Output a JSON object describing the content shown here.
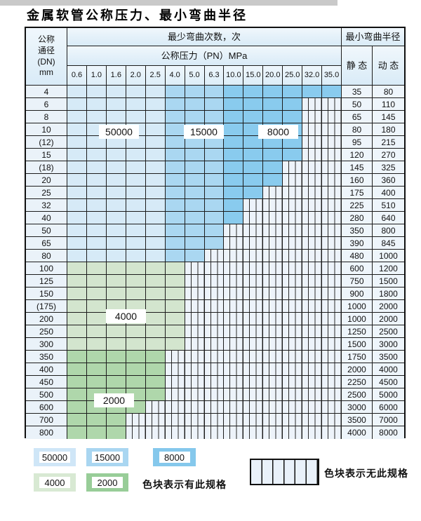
{
  "page": {
    "title": "金属软管公称压力、最小弯曲半径"
  },
  "table_header": {
    "corner": [
      "公称",
      "通径",
      "(DN)",
      "mm"
    ],
    "cycles_header": "最少弯曲次数，次",
    "pressure_header": "公称压力（PN）MPa",
    "radius_header": "最小弯曲半径",
    "static_header": "静 态",
    "dynamic_header": "动 态"
  },
  "overlays": [
    {
      "text": "50000"
    },
    {
      "text": "15000"
    },
    {
      "text": "8000"
    },
    {
      "text": "4000"
    },
    {
      "text": "2000"
    }
  ],
  "legend": {
    "has_spec_items": [
      {
        "value": "50000",
        "color": "#cfe6f7"
      },
      {
        "value": "15000",
        "color": "#a9d6f1"
      },
      {
        "value": "8000",
        "color": "#85c8ec"
      },
      {
        "value": "4000",
        "color": "#d8e9d3"
      },
      {
        "value": "2000",
        "color": "#98cd98"
      }
    ],
    "has_spec_text": "色块表示有此规格",
    "no_spec_text": "色块表示无此规格"
  },
  "colors": {
    "cycles_50000": "#d6eaf7",
    "cycles_15000": "#aad7f1",
    "cycles_8000": "#89cbee",
    "cycles_4000": "#d3e5ce",
    "cycles_2000": "#afd7ab",
    "no_spec_fill": "#edf3fa",
    "grid_line": "#1c1c1c"
  },
  "chart_data": {
    "type": "table",
    "title": "金属软管公称压力、最小弯曲半径",
    "pn_columns": [
      "0.6",
      "1.0",
      "1.6",
      "2.0",
      "2.5",
      "4.0",
      "5.0",
      "6.3",
      "10.0",
      "15.0",
      "20.0",
      "25.0",
      "32.0",
      "35.0"
    ],
    "column_headers_right": [
      "静 态",
      "动 态"
    ],
    "cycle_zone_rule": "blue rows: PN 0.6-2.5 = 50000 cycles, PN 4.0-6.3 = 15000 cycles, PN 10.0-35.0 = 8000 cycles; green1 rows = 4000 cycles; green2 rows = 2000 cycles; hatched cells = spec not available",
    "rows": [
      {
        "dn": "4",
        "group": "blue",
        "until": 13,
        "max_pn": "35.0",
        "static": "35",
        "dynamic": "80"
      },
      {
        "dn": "6",
        "group": "blue",
        "until": 11,
        "max_pn": "25.0",
        "static": "50",
        "dynamic": "110"
      },
      {
        "dn": "8",
        "group": "blue",
        "until": 11,
        "max_pn": "25.0",
        "static": "65",
        "dynamic": "145"
      },
      {
        "dn": "10",
        "group": "blue",
        "until": 11,
        "max_pn": "25.0",
        "static": "80",
        "dynamic": "180"
      },
      {
        "dn": "(12)",
        "group": "blue",
        "until": 11,
        "max_pn": "25.0",
        "static": "95",
        "dynamic": "215"
      },
      {
        "dn": "15",
        "group": "blue",
        "until": 11,
        "max_pn": "25.0",
        "static": "120",
        "dynamic": "270"
      },
      {
        "dn": "(18)",
        "group": "blue",
        "until": 10,
        "max_pn": "20.0",
        "static": "145",
        "dynamic": "325"
      },
      {
        "dn": "20",
        "group": "blue",
        "until": 10,
        "max_pn": "20.0",
        "static": "160",
        "dynamic": "360"
      },
      {
        "dn": "25",
        "group": "blue",
        "until": 9,
        "max_pn": "15.0",
        "static": "175",
        "dynamic": "400"
      },
      {
        "dn": "32",
        "group": "blue",
        "until": 8,
        "max_pn": "10.0",
        "static": "225",
        "dynamic": "510"
      },
      {
        "dn": "40",
        "group": "blue",
        "until": 8,
        "max_pn": "10.0",
        "static": "280",
        "dynamic": "640"
      },
      {
        "dn": "50",
        "group": "blue",
        "until": 7,
        "max_pn": "6.3",
        "static": "350",
        "dynamic": "800"
      },
      {
        "dn": "65",
        "group": "blue",
        "until": 7,
        "max_pn": "6.3",
        "static": "390",
        "dynamic": "845"
      },
      {
        "dn": "80",
        "group": "blue",
        "until": 6,
        "max_pn": "5.0",
        "static": "480",
        "dynamic": "1000"
      },
      {
        "dn": "100",
        "group": "green1",
        "until": 5,
        "max_pn": "4.0",
        "static": "600",
        "dynamic": "1200"
      },
      {
        "dn": "125",
        "group": "green1",
        "until": 5,
        "max_pn": "4.0",
        "static": "750",
        "dynamic": "1500"
      },
      {
        "dn": "150",
        "group": "green1",
        "until": 5,
        "max_pn": "4.0",
        "static": "900",
        "dynamic": "1800"
      },
      {
        "dn": "(175)",
        "group": "green1",
        "until": 5,
        "max_pn": "4.0",
        "static": "1000",
        "dynamic": "2000"
      },
      {
        "dn": "200",
        "group": "green1",
        "until": 5,
        "max_pn": "4.0",
        "static": "1000",
        "dynamic": "2000"
      },
      {
        "dn": "250",
        "group": "green1",
        "until": 5,
        "max_pn": "4.0",
        "static": "1250",
        "dynamic": "2500"
      },
      {
        "dn": "300",
        "group": "green1",
        "until": 5,
        "max_pn": "4.0",
        "static": "1500",
        "dynamic": "3000"
      },
      {
        "dn": "350",
        "group": "green2",
        "until": 4,
        "max_pn": "2.5",
        "static": "1750",
        "dynamic": "3500"
      },
      {
        "dn": "400",
        "group": "green2",
        "until": 4,
        "max_pn": "2.5",
        "static": "2000",
        "dynamic": "4000"
      },
      {
        "dn": "450",
        "group": "green2",
        "until": 4,
        "max_pn": "2.5",
        "static": "2250",
        "dynamic": "4500"
      },
      {
        "dn": "500",
        "group": "green2",
        "until": 4,
        "max_pn": "2.5",
        "static": "2500",
        "dynamic": "5000"
      },
      {
        "dn": "600",
        "group": "green2",
        "until": 3,
        "max_pn": "2.0",
        "static": "3000",
        "dynamic": "6000"
      },
      {
        "dn": "700",
        "group": "green2",
        "until": 2,
        "max_pn": "1.6",
        "static": "3500",
        "dynamic": "7000"
      },
      {
        "dn": "800",
        "group": "green2",
        "until": 2,
        "max_pn": "1.6",
        "static": "4000",
        "dynamic": "8000"
      }
    ]
  }
}
